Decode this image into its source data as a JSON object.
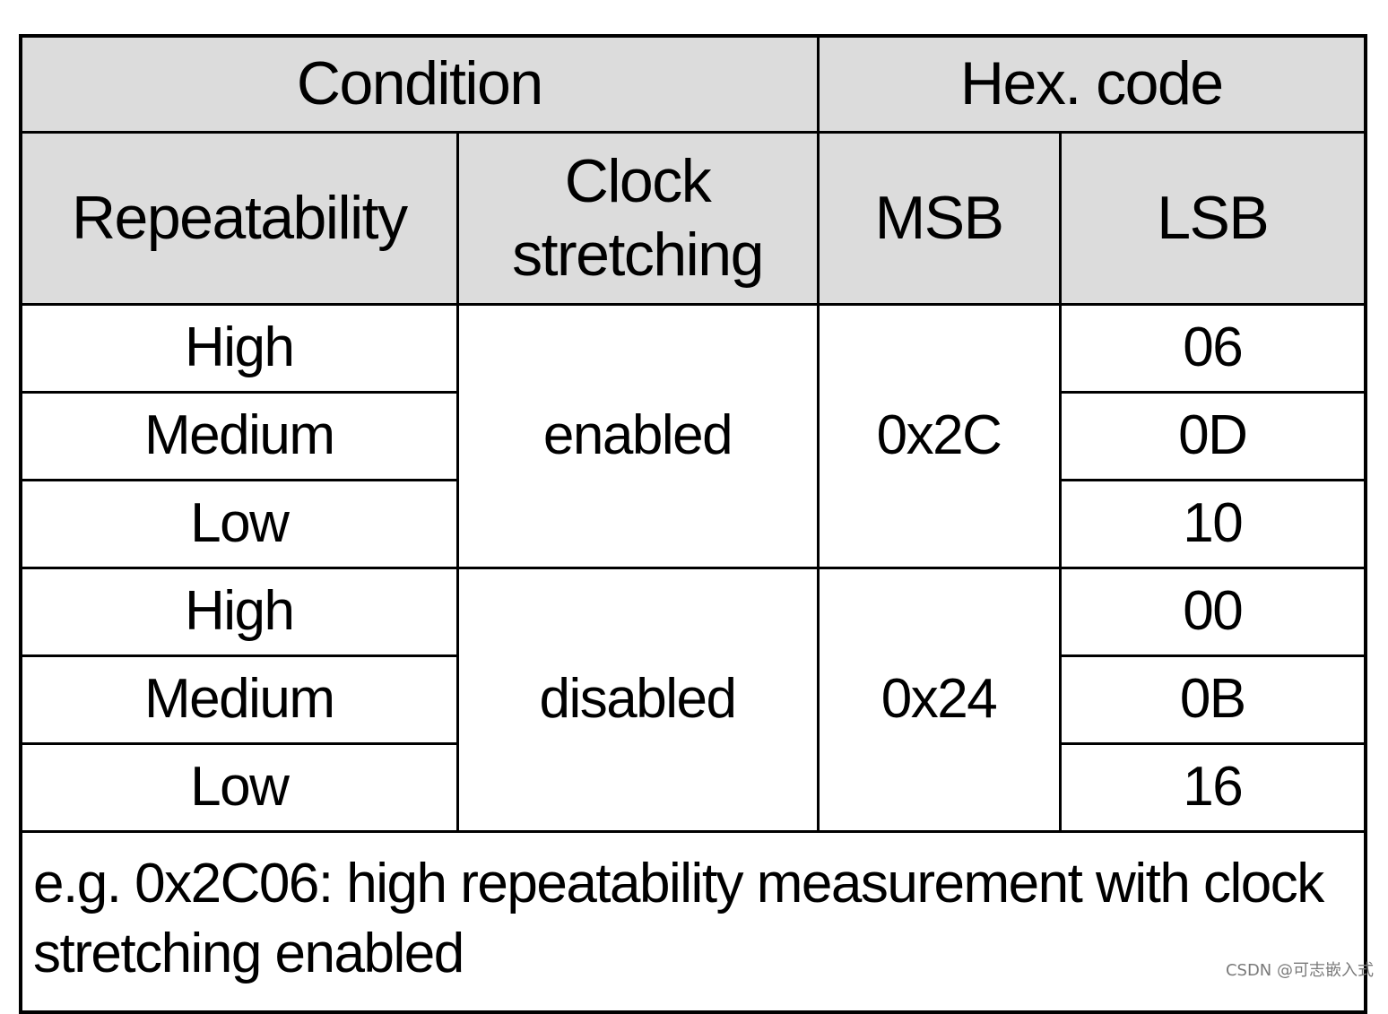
{
  "table": {
    "header_row1": {
      "condition": "Condition",
      "hex_code": "Hex. code"
    },
    "header_row2": {
      "repeatability": "Repeatability",
      "clock_stretching_line1": "Clock",
      "clock_stretching_line2": "stretching",
      "msb": "MSB",
      "lsb": "LSB"
    },
    "groups": [
      {
        "clock_stretching": "enabled",
        "msb": "0x2C",
        "rows": [
          {
            "repeatability": "High",
            "lsb": "06"
          },
          {
            "repeatability": "Medium",
            "lsb": "0D"
          },
          {
            "repeatability": "Low",
            "lsb": "10"
          }
        ]
      },
      {
        "clock_stretching": "disabled",
        "msb": "0x24",
        "rows": [
          {
            "repeatability": "High",
            "lsb": "00"
          },
          {
            "repeatability": "Medium",
            "lsb": "0B"
          },
          {
            "repeatability": "Low",
            "lsb": "16"
          }
        ]
      }
    ],
    "note": "e.g. 0x2C06: high repeatability measurement with clock stretching enabled"
  },
  "watermark": "CSDN @可志嵌入式",
  "colors": {
    "header_bg": "#dcdcdc",
    "border": "#000000",
    "text": "#000000"
  }
}
